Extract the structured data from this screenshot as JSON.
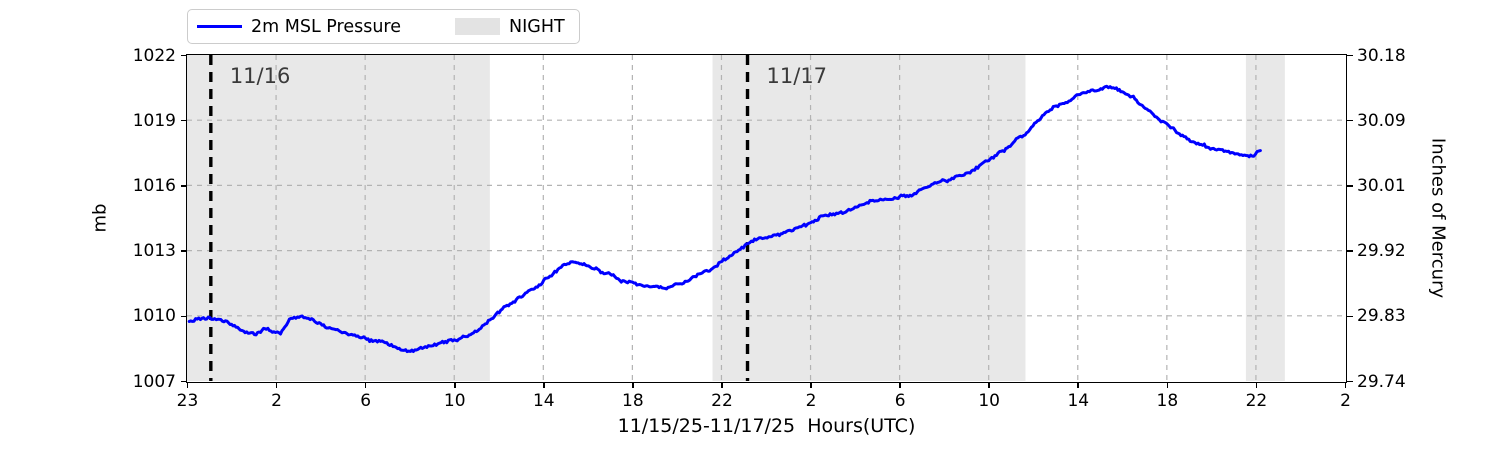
{
  "legend": {
    "series_label": "2m MSL Pressure",
    "night_label": "NIGHT"
  },
  "axes": {
    "ylabel_left": "mb",
    "ylabel_right": "Inches of Mercury",
    "xlabel": "11/15/25-11/17/25  Hours(UTC)",
    "x_tick_labels": [
      "23",
      "2",
      "6",
      "10",
      "14",
      "18",
      "22",
      "2",
      "6",
      "10",
      "14",
      "18",
      "22",
      "2"
    ],
    "y_tick_labels_left": [
      "1022",
      "1019",
      "1016",
      "1013",
      "1010",
      "1007"
    ],
    "y_tick_labels_right": [
      "30.18",
      "30.09",
      "30.01",
      "29.92",
      "29.83",
      "29.74"
    ]
  },
  "colors": {
    "line": "#0000ff",
    "night_shade": "#e8e8e8",
    "grid": "#b3b3b3",
    "day_marker_line": "#000000",
    "day_marker_text": "#3a3a3a"
  },
  "chart_data": {
    "type": "line",
    "title": "",
    "xlabel": "11/15/25-11/17/25  Hours(UTC)",
    "ylabel_left": "mb",
    "ylabel_right": "Inches of Mercury",
    "x_axis": {
      "unit": "hours (UTC)",
      "span_hours": 52,
      "tick_positions_hours": [
        0,
        4,
        8,
        12,
        16,
        20,
        24,
        28,
        32,
        36,
        40,
        44,
        48,
        52
      ],
      "tick_labels": [
        "23",
        "2",
        "6",
        "10",
        "14",
        "18",
        "22",
        "2",
        "6",
        "10",
        "14",
        "18",
        "22",
        "2"
      ]
    },
    "ylim_mb": [
      1007,
      1022
    ],
    "y_ticks_mb": [
      1007,
      1010,
      1013,
      1016,
      1019,
      1022
    ],
    "y_ticks_inhg": [
      29.74,
      29.83,
      29.92,
      30.01,
      30.09,
      30.18
    ],
    "grid": true,
    "legend_position": "top-left outside",
    "night_bands_t": [
      [
        0,
        13.6
      ],
      [
        23.6,
        37.65
      ],
      [
        47.55,
        49.3
      ]
    ],
    "day_markers": [
      {
        "label": "11/16",
        "t": 1.07
      },
      {
        "label": "11/17",
        "t": 25.17
      }
    ],
    "series": [
      {
        "name": "2m MSL Pressure",
        "units": "mb",
        "points_t_mb": [
          [
            0.1,
            1009.8
          ],
          [
            1.1,
            1009.85
          ],
          [
            1.8,
            1009.7
          ],
          [
            2.4,
            1009.35
          ],
          [
            3.1,
            1009.15
          ],
          [
            3.5,
            1009.45
          ],
          [
            3.9,
            1009.3
          ],
          [
            4.2,
            1009.2
          ],
          [
            4.6,
            1009.8
          ],
          [
            5.1,
            1009.95
          ],
          [
            5.6,
            1009.75
          ],
          [
            6.2,
            1009.5
          ],
          [
            6.9,
            1009.3
          ],
          [
            7.6,
            1009.05
          ],
          [
            8.2,
            1008.85
          ],
          [
            8.9,
            1008.7
          ],
          [
            9.6,
            1008.45
          ],
          [
            10.1,
            1008.35
          ],
          [
            10.7,
            1008.5
          ],
          [
            11.4,
            1008.7
          ],
          [
            12.0,
            1008.9
          ],
          [
            12.6,
            1009.1
          ],
          [
            13.2,
            1009.4
          ],
          [
            13.6,
            1009.8
          ],
          [
            14.3,
            1010.4
          ],
          [
            15.0,
            1010.9
          ],
          [
            15.6,
            1011.3
          ],
          [
            16.3,
            1011.8
          ],
          [
            16.8,
            1012.2
          ],
          [
            17.3,
            1012.45
          ],
          [
            17.7,
            1012.35
          ],
          [
            18.3,
            1012.1
          ],
          [
            19.0,
            1011.85
          ],
          [
            19.5,
            1011.6
          ],
          [
            20.0,
            1011.5
          ],
          [
            20.6,
            1011.35
          ],
          [
            21.2,
            1011.3
          ],
          [
            21.8,
            1011.35
          ],
          [
            22.3,
            1011.5
          ],
          [
            23.0,
            1011.9
          ],
          [
            23.6,
            1012.1
          ],
          [
            24.1,
            1012.55
          ],
          [
            24.7,
            1012.9
          ],
          [
            25.2,
            1013.3
          ],
          [
            25.7,
            1013.5
          ],
          [
            26.4,
            1013.75
          ],
          [
            27.0,
            1013.95
          ],
          [
            28.0,
            1014.35
          ],
          [
            28.6,
            1014.6
          ],
          [
            29.3,
            1014.75
          ],
          [
            30.0,
            1015.0
          ],
          [
            30.6,
            1015.25
          ],
          [
            31.2,
            1015.35
          ],
          [
            31.7,
            1015.4
          ],
          [
            32.0,
            1015.5
          ],
          [
            32.6,
            1015.65
          ],
          [
            33.3,
            1016.0
          ],
          [
            34.0,
            1016.15
          ],
          [
            34.7,
            1016.4
          ],
          [
            35.3,
            1016.7
          ],
          [
            36.0,
            1017.15
          ],
          [
            36.7,
            1017.6
          ],
          [
            37.3,
            1018.2
          ],
          [
            37.7,
            1018.45
          ],
          [
            38.2,
            1019.0
          ],
          [
            38.9,
            1019.5
          ],
          [
            39.6,
            1019.9
          ],
          [
            40.1,
            1020.25
          ],
          [
            40.6,
            1020.4
          ],
          [
            40.9,
            1020.35
          ],
          [
            41.3,
            1020.6
          ],
          [
            41.6,
            1020.55
          ],
          [
            42.0,
            1020.3
          ],
          [
            42.5,
            1020.0
          ],
          [
            43.1,
            1019.5
          ],
          [
            43.6,
            1019.1
          ],
          [
            44.1,
            1018.7
          ],
          [
            44.7,
            1018.2
          ],
          [
            45.4,
            1017.9
          ],
          [
            46.1,
            1017.65
          ],
          [
            46.7,
            1017.5
          ],
          [
            47.2,
            1017.45
          ],
          [
            47.7,
            1017.35
          ],
          [
            47.9,
            1017.4
          ],
          [
            48.2,
            1017.6
          ]
        ]
      }
    ]
  }
}
